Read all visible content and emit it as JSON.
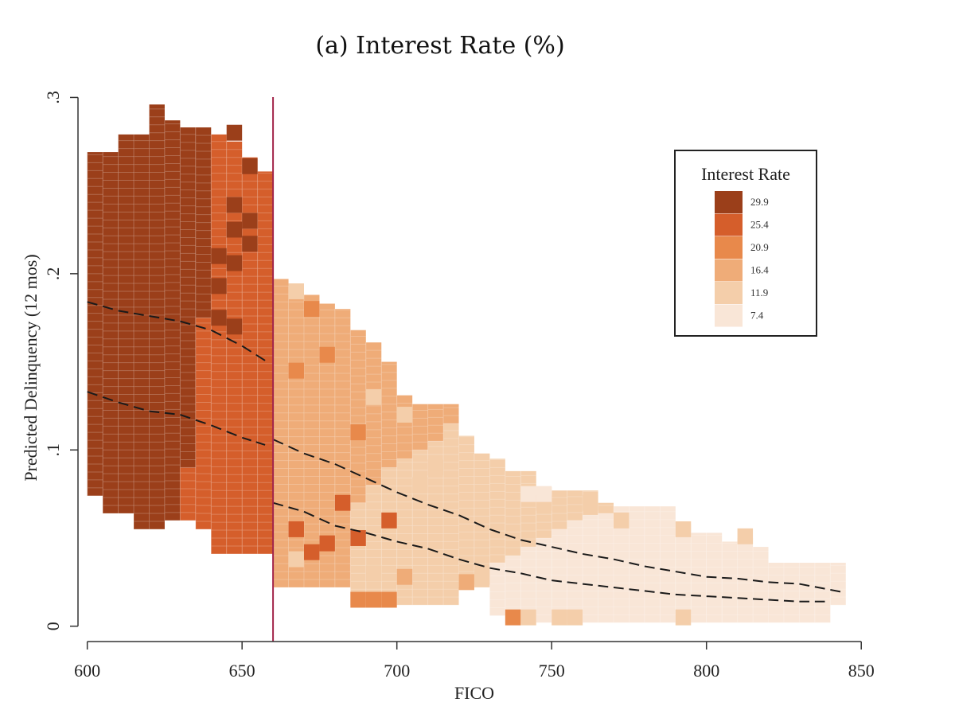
{
  "chart_data": {
    "type": "heatmap",
    "title": "(a) Interest Rate (%)",
    "xlabel": "FICO",
    "ylabel": "Predicted Delinquency (12 mos)",
    "xlim": [
      597,
      852
    ],
    "ylim": [
      -0.006,
      0.302
    ],
    "x_ticks": [
      600,
      650,
      700,
      750,
      800,
      850
    ],
    "y_ticks": [
      0,
      0.1,
      0.2,
      0.3
    ],
    "y_tick_labels": [
      "0",
      ".1",
      ".2",
      ".3"
    ],
    "cutoff_fico": 660,
    "cell_width_fico": 5,
    "cell_height": 0.0045,
    "legend": {
      "title": "Interest Rate",
      "placement": "top-right",
      "entries": [
        {
          "label": "29.9",
          "color": "#9b3f1a"
        },
        {
          "label": "25.4",
          "color": "#d55e2b"
        },
        {
          "label": "20.9",
          "color": "#e8894b"
        },
        {
          "label": "16.4",
          "color": "#efac78"
        },
        {
          "label": "11.9",
          "color": "#f4ceaa"
        },
        {
          "label": "7.4",
          "color": "#f9e6d7"
        }
      ]
    },
    "columns": [
      {
        "fico": 600,
        "ylo": 0.074,
        "yhi": 0.269,
        "bands": [
          [
            0.074,
            0.269,
            0
          ]
        ]
      },
      {
        "fico": 605,
        "ylo": 0.064,
        "yhi": 0.269,
        "bands": [
          [
            0.064,
            0.269,
            0
          ]
        ]
      },
      {
        "fico": 610,
        "ylo": 0.064,
        "yhi": 0.279,
        "bands": [
          [
            0.064,
            0.279,
            0
          ]
        ]
      },
      {
        "fico": 615,
        "ylo": 0.055,
        "yhi": 0.279,
        "bands": [
          [
            0.055,
            0.279,
            0
          ]
        ]
      },
      {
        "fico": 620,
        "ylo": 0.055,
        "yhi": 0.296,
        "bands": [
          [
            0.055,
            0.296,
            0
          ]
        ]
      },
      {
        "fico": 625,
        "ylo": 0.06,
        "yhi": 0.287,
        "bands": [
          [
            0.06,
            0.287,
            0
          ]
        ]
      },
      {
        "fico": 630,
        "ylo": 0.06,
        "yhi": 0.283,
        "bands": [
          [
            0.06,
            0.09,
            1
          ],
          [
            0.09,
            0.283,
            0
          ]
        ]
      },
      {
        "fico": 635,
        "ylo": 0.055,
        "yhi": 0.283,
        "bands": [
          [
            0.055,
            0.175,
            1
          ],
          [
            0.175,
            0.283,
            0
          ]
        ]
      },
      {
        "fico": 640,
        "ylo": 0.041,
        "yhi": 0.279,
        "bands": [
          [
            0.041,
            0.279,
            1
          ]
        ]
      },
      {
        "fico": 645,
        "ylo": 0.041,
        "yhi": 0.275,
        "bands": [
          [
            0.041,
            0.275,
            1
          ]
        ]
      },
      {
        "fico": 650,
        "ylo": 0.041,
        "yhi": 0.266,
        "bands": [
          [
            0.041,
            0.266,
            1
          ]
        ]
      },
      {
        "fico": 655,
        "ylo": 0.041,
        "yhi": 0.258,
        "bands": [
          [
            0.041,
            0.258,
            1
          ]
        ]
      },
      {
        "fico": 660,
        "ylo": 0.022,
        "yhi": 0.197,
        "bands": [
          [
            0.022,
            0.197,
            3
          ]
        ]
      },
      {
        "fico": 665,
        "ylo": 0.022,
        "yhi": 0.193,
        "bands": [
          [
            0.022,
            0.193,
            3
          ]
        ]
      },
      {
        "fico": 670,
        "ylo": 0.022,
        "yhi": 0.188,
        "bands": [
          [
            0.022,
            0.188,
            3
          ]
        ]
      },
      {
        "fico": 675,
        "ylo": 0.022,
        "yhi": 0.183,
        "bands": [
          [
            0.022,
            0.183,
            3
          ]
        ]
      },
      {
        "fico": 680,
        "ylo": 0.022,
        "yhi": 0.177,
        "bands": [
          [
            0.022,
            0.18,
            3
          ]
        ]
      },
      {
        "fico": 685,
        "ylo": 0.012,
        "yhi": 0.168,
        "bands": [
          [
            0.012,
            0.07,
            4
          ],
          [
            0.07,
            0.168,
            3
          ]
        ]
      },
      {
        "fico": 690,
        "ylo": 0.012,
        "yhi": 0.161,
        "bands": [
          [
            0.012,
            0.08,
            4
          ],
          [
            0.08,
            0.161,
            3
          ]
        ]
      },
      {
        "fico": 695,
        "ylo": 0.012,
        "yhi": 0.15,
        "bands": [
          [
            0.012,
            0.09,
            4
          ],
          [
            0.09,
            0.15,
            3
          ]
        ]
      },
      {
        "fico": 700,
        "ylo": 0.012,
        "yhi": 0.131,
        "bands": [
          [
            0.012,
            0.095,
            4
          ],
          [
            0.095,
            0.131,
            3
          ]
        ]
      },
      {
        "fico": 705,
        "ylo": 0.012,
        "yhi": 0.126,
        "bands": [
          [
            0.012,
            0.1,
            4
          ],
          [
            0.1,
            0.126,
            3
          ]
        ]
      },
      {
        "fico": 710,
        "ylo": 0.012,
        "yhi": 0.126,
        "bands": [
          [
            0.012,
            0.105,
            4
          ],
          [
            0.105,
            0.126,
            3
          ]
        ]
      },
      {
        "fico": 715,
        "ylo": 0.012,
        "yhi": 0.126,
        "bands": [
          [
            0.012,
            0.115,
            4
          ],
          [
            0.115,
            0.126,
            3
          ]
        ]
      },
      {
        "fico": 720,
        "ylo": 0.022,
        "yhi": 0.108,
        "bands": [
          [
            0.022,
            0.108,
            4
          ]
        ]
      },
      {
        "fico": 725,
        "ylo": 0.022,
        "yhi": 0.098,
        "bands": [
          [
            0.022,
            0.098,
            4
          ]
        ]
      },
      {
        "fico": 730,
        "ylo": 0.006,
        "yhi": 0.095,
        "bands": [
          [
            0.006,
            0.036,
            5
          ],
          [
            0.036,
            0.095,
            4
          ]
        ]
      },
      {
        "fico": 735,
        "ylo": 0.002,
        "yhi": 0.088,
        "bands": [
          [
            0.002,
            0.04,
            5
          ],
          [
            0.04,
            0.088,
            4
          ]
        ]
      },
      {
        "fico": 740,
        "ylo": 0.002,
        "yhi": 0.088,
        "bands": [
          [
            0.002,
            0.045,
            5
          ],
          [
            0.045,
            0.088,
            4
          ]
        ]
      },
      {
        "fico": 745,
        "ylo": 0.002,
        "yhi": 0.079,
        "bands": [
          [
            0.002,
            0.05,
            5
          ],
          [
            0.05,
            0.079,
            4
          ]
        ]
      },
      {
        "fico": 750,
        "ylo": 0.002,
        "yhi": 0.077,
        "bands": [
          [
            0.002,
            0.055,
            5
          ],
          [
            0.055,
            0.077,
            4
          ]
        ]
      },
      {
        "fico": 755,
        "ylo": 0.002,
        "yhi": 0.077,
        "bands": [
          [
            0.002,
            0.06,
            5
          ],
          [
            0.06,
            0.077,
            4
          ]
        ]
      },
      {
        "fico": 760,
        "ylo": 0.002,
        "yhi": 0.077,
        "bands": [
          [
            0.002,
            0.063,
            5
          ],
          [
            0.063,
            0.077,
            4
          ]
        ]
      },
      {
        "fico": 765,
        "ylo": 0.002,
        "yhi": 0.07,
        "bands": [
          [
            0.002,
            0.064,
            5
          ],
          [
            0.064,
            0.07,
            4
          ]
        ]
      },
      {
        "fico": 770,
        "ylo": 0.002,
        "yhi": 0.068,
        "bands": [
          [
            0.002,
            0.068,
            5
          ]
        ]
      },
      {
        "fico": 775,
        "ylo": 0.002,
        "yhi": 0.068,
        "bands": [
          [
            0.002,
            0.068,
            5
          ]
        ]
      },
      {
        "fico": 780,
        "ylo": 0.002,
        "yhi": 0.068,
        "bands": [
          [
            0.002,
            0.068,
            5
          ]
        ]
      },
      {
        "fico": 785,
        "ylo": 0.002,
        "yhi": 0.068,
        "bands": [
          [
            0.002,
            0.068,
            5
          ]
        ]
      },
      {
        "fico": 790,
        "ylo": 0.002,
        "yhi": 0.058,
        "bands": [
          [
            0.002,
            0.058,
            5
          ]
        ]
      },
      {
        "fico": 795,
        "ylo": 0.002,
        "yhi": 0.053,
        "bands": [
          [
            0.002,
            0.053,
            5
          ]
        ]
      },
      {
        "fico": 800,
        "ylo": 0.002,
        "yhi": 0.053,
        "bands": [
          [
            0.002,
            0.053,
            5
          ]
        ]
      },
      {
        "fico": 805,
        "ylo": 0.002,
        "yhi": 0.048,
        "bands": [
          [
            0.002,
            0.048,
            5
          ]
        ]
      },
      {
        "fico": 810,
        "ylo": 0.002,
        "yhi": 0.05,
        "bands": [
          [
            0.002,
            0.05,
            5
          ]
        ]
      },
      {
        "fico": 815,
        "ylo": 0.002,
        "yhi": 0.045,
        "bands": [
          [
            0.002,
            0.045,
            5
          ]
        ]
      },
      {
        "fico": 820,
        "ylo": 0.002,
        "yhi": 0.036,
        "bands": [
          [
            0.002,
            0.036,
            5
          ]
        ]
      },
      {
        "fico": 825,
        "ylo": 0.002,
        "yhi": 0.036,
        "bands": [
          [
            0.002,
            0.036,
            5
          ]
        ]
      },
      {
        "fico": 830,
        "ylo": 0.002,
        "yhi": 0.036,
        "bands": [
          [
            0.002,
            0.036,
            5
          ]
        ]
      },
      {
        "fico": 835,
        "ylo": 0.002,
        "yhi": 0.036,
        "bands": [
          [
            0.002,
            0.036,
            5
          ]
        ]
      },
      {
        "fico": 840,
        "ylo": 0.012,
        "yhi": 0.036,
        "bands": [
          [
            0.012,
            0.036,
            5
          ]
        ]
      }
    ],
    "accent_cells": [
      {
        "fico": 640,
        "y": 0.193,
        "color": 0
      },
      {
        "fico": 640,
        "y": 0.175,
        "color": 0
      },
      {
        "fico": 645,
        "y": 0.28,
        "color": 0
      },
      {
        "fico": 645,
        "y": 0.239,
        "color": 0
      },
      {
        "fico": 650,
        "y": 0.261,
        "color": 0
      },
      {
        "fico": 650,
        "y": 0.23,
        "color": 0
      },
      {
        "fico": 645,
        "y": 0.225,
        "color": 0
      },
      {
        "fico": 640,
        "y": 0.21,
        "color": 0
      },
      {
        "fico": 650,
        "y": 0.217,
        "color": 0
      },
      {
        "fico": 645,
        "y": 0.206,
        "color": 0
      },
      {
        "fico": 645,
        "y": 0.17,
        "color": 0
      },
      {
        "fico": 665,
        "y": 0.055,
        "color": 1
      },
      {
        "fico": 670,
        "y": 0.042,
        "color": 1
      },
      {
        "fico": 675,
        "y": 0.047,
        "color": 1
      },
      {
        "fico": 680,
        "y": 0.07,
        "color": 1
      },
      {
        "fico": 685,
        "y": 0.05,
        "color": 1
      },
      {
        "fico": 695,
        "y": 0.06,
        "color": 1
      },
      {
        "fico": 665,
        "y": 0.145,
        "color": 2
      },
      {
        "fico": 675,
        "y": 0.154,
        "color": 2
      },
      {
        "fico": 670,
        "y": 0.18,
        "color": 2
      },
      {
        "fico": 685,
        "y": 0.11,
        "color": 2
      },
      {
        "fico": 665,
        "y": 0.038,
        "color": 4
      },
      {
        "fico": 690,
        "y": 0.03,
        "color": 4
      },
      {
        "fico": 690,
        "y": 0.13,
        "color": 4
      },
      {
        "fico": 700,
        "y": 0.12,
        "color": 4
      },
      {
        "fico": 705,
        "y": 0.08,
        "color": 4
      },
      {
        "fico": 710,
        "y": 0.09,
        "color": 4
      },
      {
        "fico": 665,
        "y": 0.19,
        "color": 4
      },
      {
        "fico": 685,
        "y": 0.015,
        "color": 2
      },
      {
        "fico": 690,
        "y": 0.015,
        "color": 2
      },
      {
        "fico": 695,
        "y": 0.015,
        "color": 2
      },
      {
        "fico": 735,
        "y": 0.005,
        "color": 2
      },
      {
        "fico": 700,
        "y": 0.028,
        "color": 3
      },
      {
        "fico": 720,
        "y": 0.025,
        "color": 3
      },
      {
        "fico": 725,
        "y": 0.028,
        "color": 4
      },
      {
        "fico": 745,
        "y": 0.07,
        "color": 4
      },
      {
        "fico": 760,
        "y": 0.07,
        "color": 4
      },
      {
        "fico": 770,
        "y": 0.06,
        "color": 4
      },
      {
        "fico": 790,
        "y": 0.055,
        "color": 4
      },
      {
        "fico": 810,
        "y": 0.051,
        "color": 4
      },
      {
        "fico": 740,
        "y": 0.075,
        "color": 5
      },
      {
        "fico": 745,
        "y": 0.075,
        "color": 5
      },
      {
        "fico": 750,
        "y": 0.005,
        "color": 4
      },
      {
        "fico": 755,
        "y": 0.005,
        "color": 4
      },
      {
        "fico": 740,
        "y": 0.005,
        "color": 4
      },
      {
        "fico": 790,
        "y": 0.005,
        "color": 4
      }
    ],
    "contour_series": [
      {
        "name": "upper",
        "points": [
          [
            600,
            0.184
          ],
          [
            610,
            0.179
          ],
          [
            620,
            0.176
          ],
          [
            630,
            0.173
          ],
          [
            640,
            0.168
          ],
          [
            650,
            0.159
          ],
          [
            659,
            0.149
          ],
          [
            660,
            0.106
          ],
          [
            670,
            0.098
          ],
          [
            680,
            0.092
          ],
          [
            690,
            0.084
          ],
          [
            700,
            0.076
          ],
          [
            710,
            0.069
          ],
          [
            720,
            0.063
          ],
          [
            730,
            0.055
          ],
          [
            740,
            0.049
          ],
          [
            750,
            0.045
          ],
          [
            760,
            0.041
          ],
          [
            770,
            0.038
          ],
          [
            780,
            0.034
          ],
          [
            790,
            0.031
          ],
          [
            800,
            0.028
          ],
          [
            810,
            0.027
          ],
          [
            820,
            0.025
          ],
          [
            830,
            0.024
          ],
          [
            845,
            0.019
          ]
        ]
      },
      {
        "name": "lower",
        "points": [
          [
            600,
            0.133
          ],
          [
            610,
            0.127
          ],
          [
            620,
            0.122
          ],
          [
            630,
            0.12
          ],
          [
            640,
            0.114
          ],
          [
            650,
            0.107
          ],
          [
            659,
            0.102
          ],
          [
            660,
            0.07
          ],
          [
            670,
            0.065
          ],
          [
            680,
            0.057
          ],
          [
            690,
            0.053
          ],
          [
            700,
            0.048
          ],
          [
            710,
            0.044
          ],
          [
            720,
            0.038
          ],
          [
            730,
            0.033
          ],
          [
            740,
            0.03
          ],
          [
            750,
            0.026
          ],
          [
            760,
            0.024
          ],
          [
            770,
            0.022
          ],
          [
            780,
            0.02
          ],
          [
            790,
            0.018
          ],
          [
            800,
            0.017
          ],
          [
            810,
            0.016
          ],
          [
            820,
            0.015
          ],
          [
            830,
            0.014
          ],
          [
            840,
            0.014
          ]
        ]
      }
    ]
  }
}
